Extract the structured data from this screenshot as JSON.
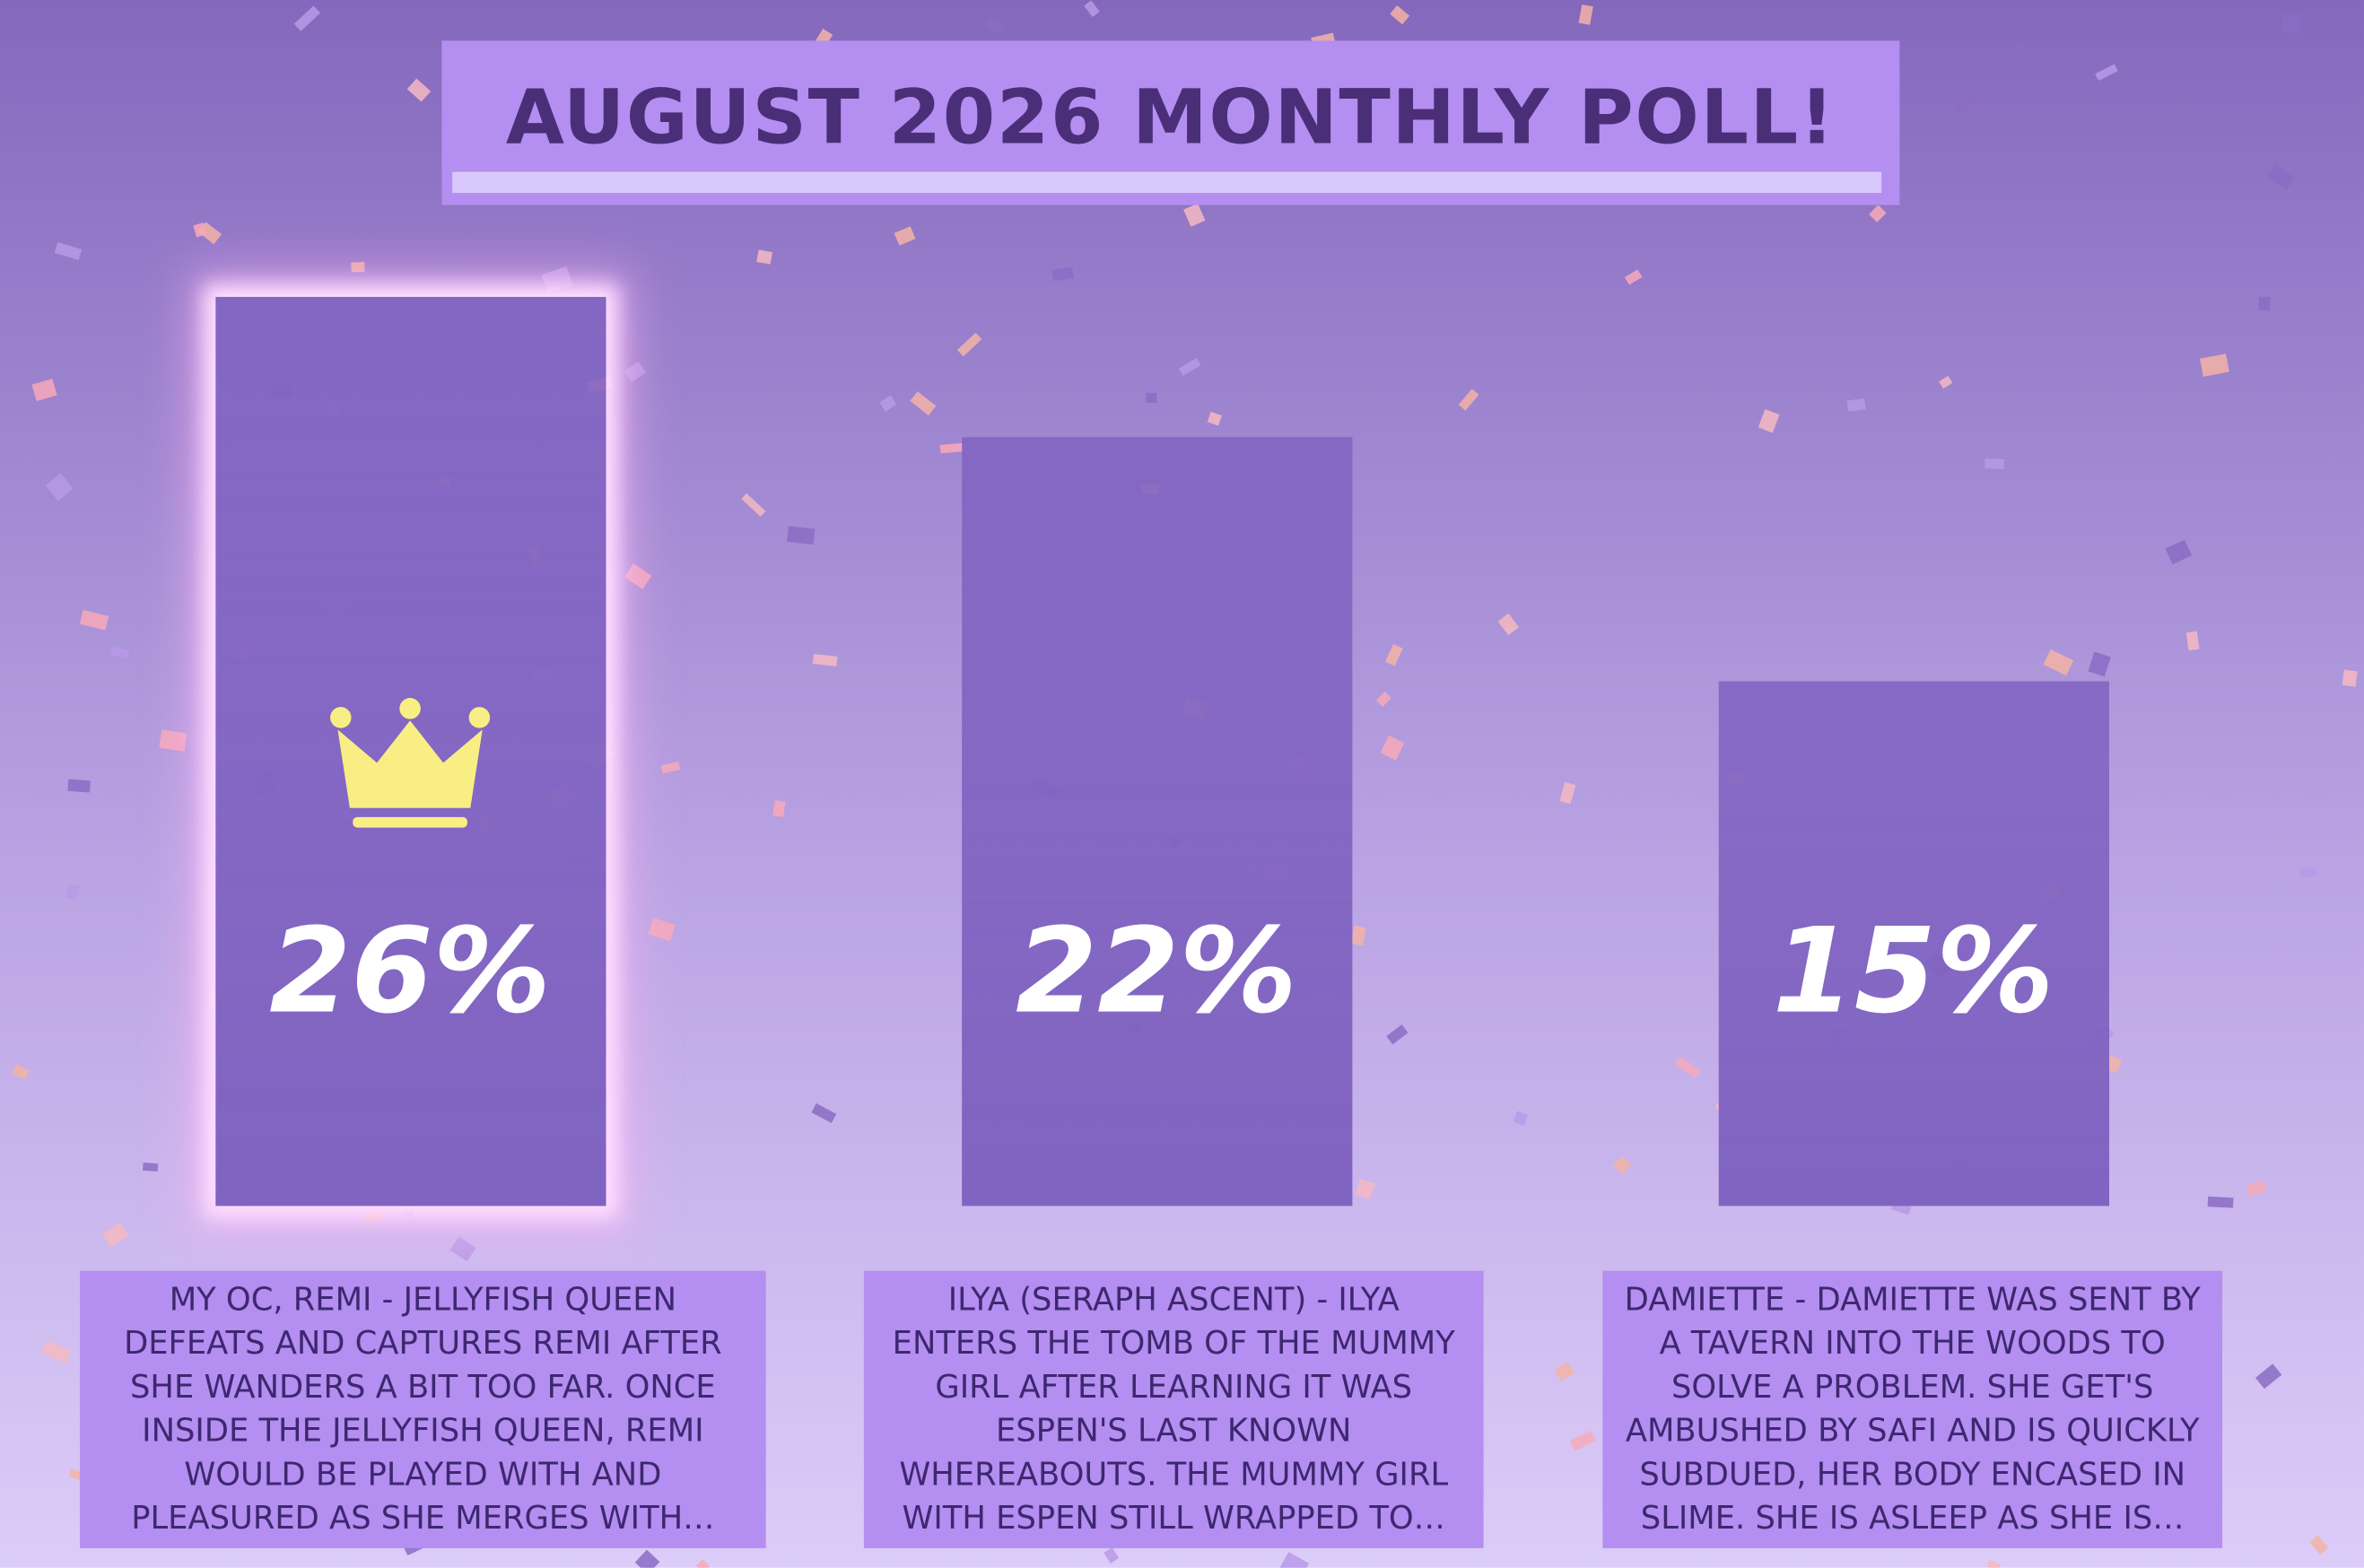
{
  "chart_data": {
    "type": "bar",
    "title": "AUGUST 2026 MONTHLY POLL!",
    "categories": [
      "MY OC, REMI - JELLYFISH QUEEN DEFEATS AND CAPTURES REMI AFTER SHE WANDERS A BIT TOO FAR. ONCE INSIDE THE JELLYFISH QUEEN, REMI WOULD BE PLAYED WITH AND PLEASURED AS SHE MERGES WITH…",
      "ILYA (SERAPH ASCENT) - ILYA ENTERS THE TOMB OF THE MUMMY GIRL AFTER LEARNING IT WAS ESPEN'S LAST KNOWN WHEREABOUTS. THE MUMMY GIRL WITH ESPEN STILL WRAPPED TO…",
      "DAMIETTE - DAMIETTE WAS SENT BY A TAVERN INTO THE WOODS TO SOLVE A PROBLEM. SHE GET'S AMBUSHED BY SAFI AND IS QUICKLY SUBDUED, HER BODY ENCASED IN SLIME. SHE IS ASLEEP AS SHE IS…"
    ],
    "values": [
      26,
      22,
      15
    ],
    "value_labels": [
      "26%",
      "22%",
      "15%"
    ],
    "color": "#7a5fb8"
  }
}
